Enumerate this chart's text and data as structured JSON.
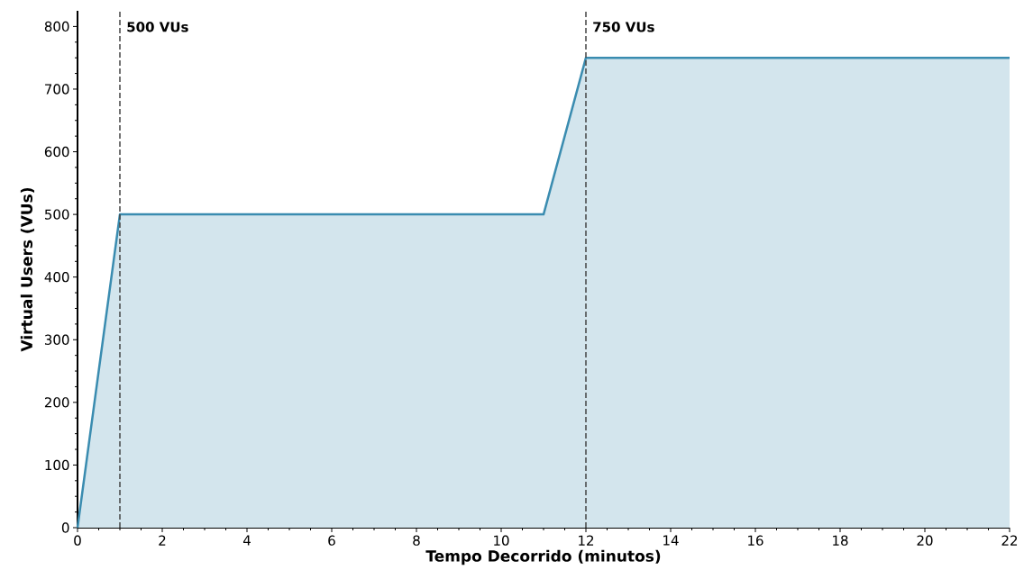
{
  "chart_data": {
    "type": "area",
    "xlabel": "Tempo Decorrido (minutos)",
    "ylabel": "Virtual Users (VUs)",
    "x": [
      0,
      1,
      11,
      12,
      22
    ],
    "series": [
      {
        "color": "#3a8cb0",
        "values": [
          0,
          500,
          500,
          750,
          750
        ]
      }
    ],
    "xlim": [
      0,
      22
    ],
    "xticks": [
      0,
      2,
      4,
      6,
      8,
      10,
      12,
      14,
      16,
      18,
      20,
      22
    ],
    "ylim": [
      0,
      825
    ],
    "yticks": [
      0,
      100,
      200,
      300,
      400,
      500,
      600,
      700,
      800
    ],
    "ref_lines": [
      {
        "axis": "x",
        "value": 1,
        "label": "500 VUs",
        "color": "#444444",
        "line_style": "dashed"
      },
      {
        "axis": "x",
        "value": 12,
        "label": "750 VUs",
        "color": "#444444",
        "line_style": "dashed"
      }
    ],
    "grid": false
  }
}
